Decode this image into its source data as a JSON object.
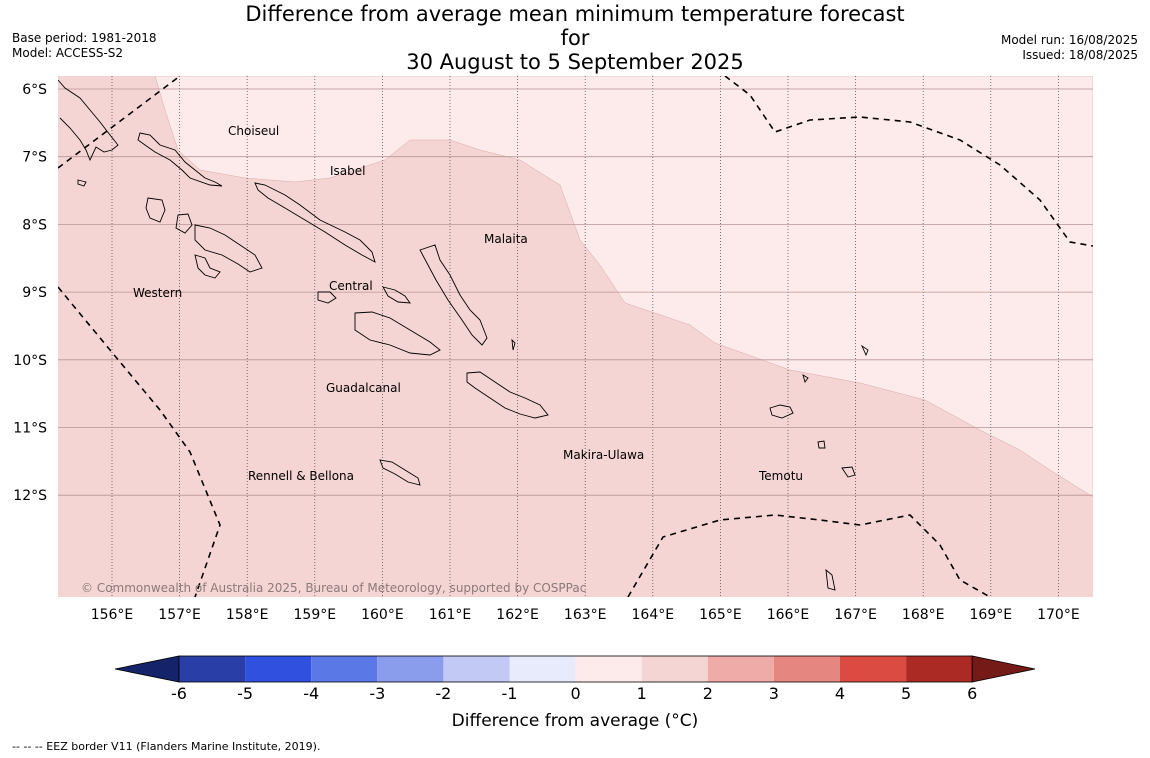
{
  "title": {
    "line1": "Difference from average mean minimum temperature forecast for",
    "line2": "30 August to 5 September 2025"
  },
  "meta_left": {
    "base_period": "Base period: 1981-2018",
    "model": "Model: ACCESS-S2"
  },
  "meta_right": {
    "model_run": "Model run: 16/08/2025",
    "issued": "Issued: 18/08/2025"
  },
  "map": {
    "lat_labels": [
      "6°S",
      "7°S",
      "8°S",
      "9°S",
      "10°S",
      "11°S",
      "12°S"
    ],
    "lon_labels": [
      "156°E",
      "157°E",
      "158°E",
      "159°E",
      "160°E",
      "161°E",
      "162°E",
      "163°E",
      "164°E",
      "165°E",
      "166°E",
      "167°E",
      "168°E",
      "169°E",
      "170°E"
    ],
    "regions": [
      "Choiseul",
      "Isabel",
      "Malaita",
      "Western",
      "Central",
      "Guadalcanal",
      "Rennell & Bellona",
      "Makira-Ulawa",
      "Temotu"
    ],
    "copyright": "© Commonwealth of Australia 2025, Bureau of Meteorology, supported by COSPPac",
    "fill_colors": {
      "0_to_1": "#fcebea",
      "1_to_2": "#f5d5d3"
    }
  },
  "colorbar": {
    "ticks": [
      "-6",
      "-5",
      "-4",
      "-3",
      "-2",
      "-1",
      "0",
      "1",
      "2",
      "3",
      "4",
      "5",
      "6"
    ],
    "colors": [
      "#15246a",
      "#2a3ea8",
      "#3050e0",
      "#5a78e6",
      "#8a9dec",
      "#c2c9f4",
      "#e8ebfb",
      "#fcebea",
      "#f5d5d3",
      "#eeaba7",
      "#e68680",
      "#dc4b42",
      "#ac2a24",
      "#741b17"
    ],
    "label": "Difference from average (°C)"
  },
  "footnote": "-- -- -- EEZ border V11 (Flanders Marine Institute, 2019)."
}
